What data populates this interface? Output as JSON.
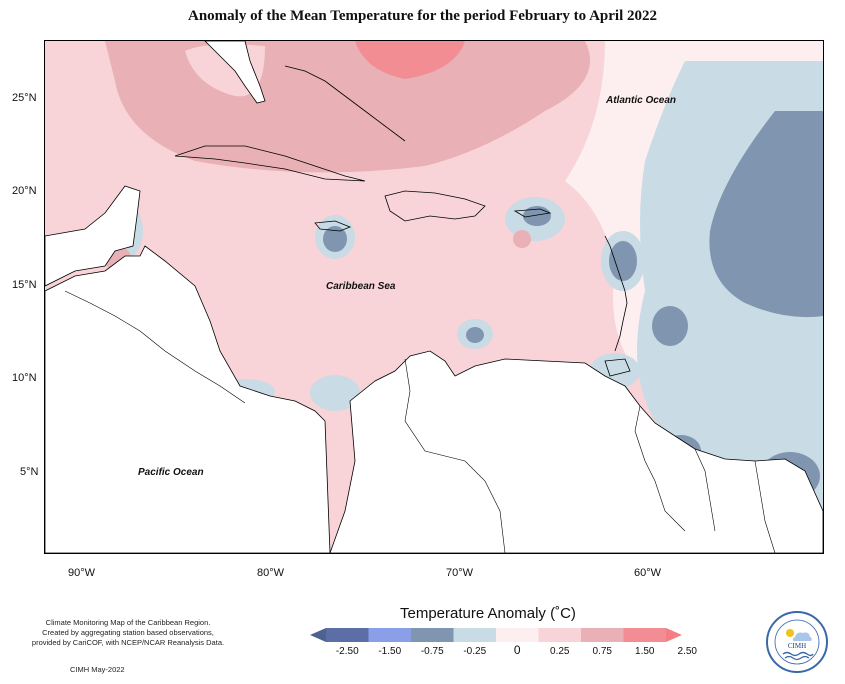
{
  "title": "Anomaly of the Mean Temperature for the period February to April 2022",
  "axes": {
    "lat_labels": [
      "25°N",
      "20°N",
      "15°N",
      "10°N",
      "5°N"
    ],
    "lon_labels": [
      "90°W",
      "80°W",
      "70°W",
      "60°W"
    ]
  },
  "ocean_labels": {
    "atlantic": "Atlantic Ocean",
    "caribbean": "Caribbean Sea",
    "pacific": "Pacific Ocean"
  },
  "legend": {
    "title": "Temperature Anomaly (˚C)",
    "ticks": [
      "-2.50",
      "-1.50",
      "-0.75",
      "-0.25",
      "0",
      "0.25",
      "0.75",
      "1.50",
      "2.50"
    ],
    "colors": [
      "#5b6fa6",
      "#8b9ee8",
      "#7f95b0",
      "#c9dbe4",
      "#fdeff0",
      "#f8d4d9",
      "#e9b0b5",
      "#f28d93"
    ],
    "low_arrow_color": "#4e628f",
    "high_arrow_color": "#f47e84"
  },
  "footer": {
    "line1": "Climate Monitoring Map of the Caribbean Region.",
    "line2": "Created by aggregating station based observations,",
    "line3": "provided by CariCOF, with NCEP/NCAR Reanalysis Data.",
    "credit": "CIMH May-2022"
  },
  "logo": {
    "text": "CIMH"
  }
}
